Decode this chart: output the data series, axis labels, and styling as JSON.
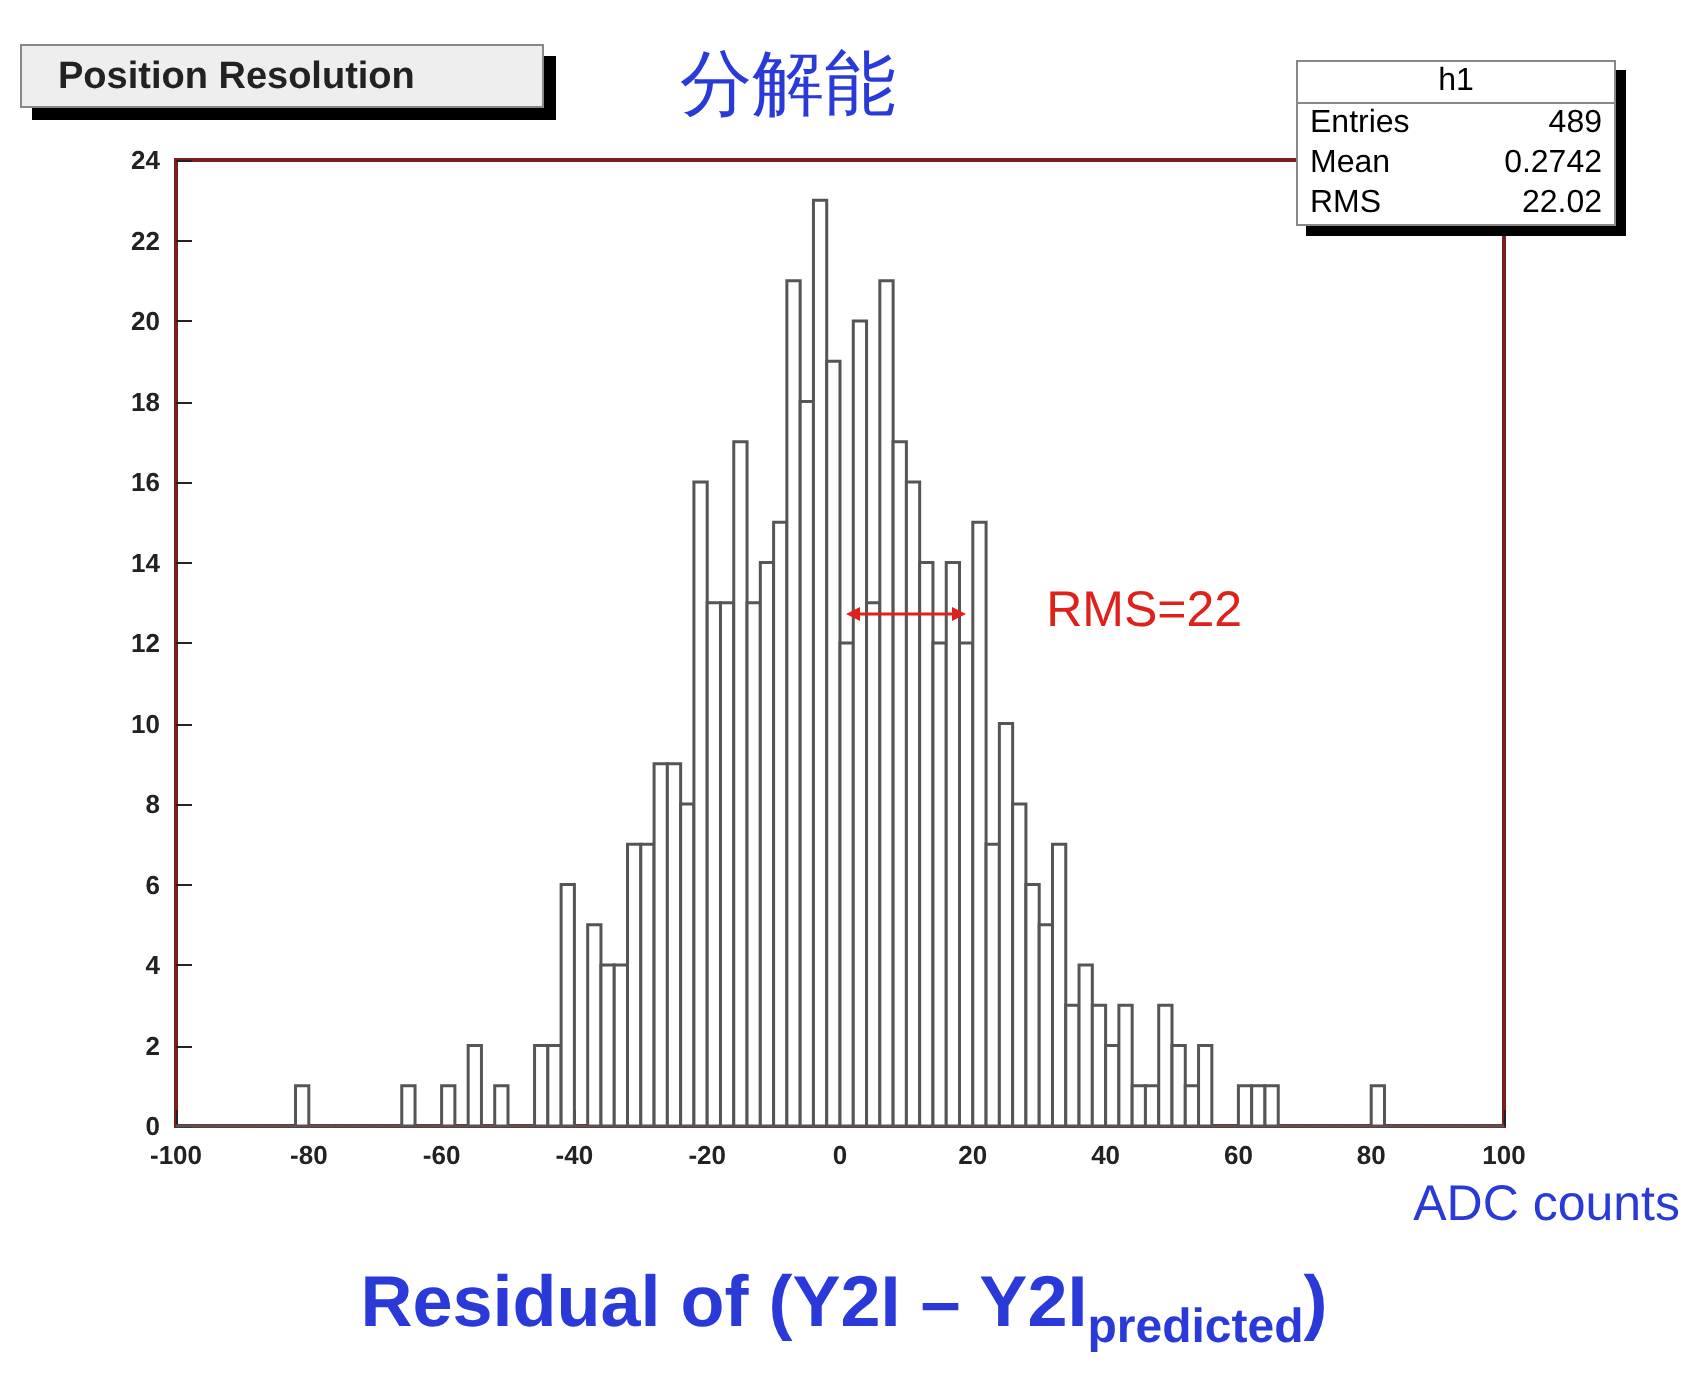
{
  "chart_data": {
    "type": "histogram",
    "title": "分解能",
    "subtitle": "Position Resolution",
    "xlabel": "ADC counts",
    "bins": [
      -100,
      -98,
      -96,
      -94,
      -92,
      -90,
      -88,
      -86,
      -84,
      -82,
      -80,
      -78,
      -76,
      -74,
      -72,
      -70,
      -68,
      -66,
      -64,
      -62,
      -60,
      -58,
      -56,
      -54,
      -52,
      -50,
      -48,
      -46,
      -44,
      -42,
      -40,
      -38,
      -36,
      -34,
      -32,
      -30,
      -28,
      -26,
      -24,
      -22,
      -20,
      -18,
      -16,
      -14,
      -12,
      -10,
      -8,
      -6,
      -4,
      -2,
      0,
      2,
      4,
      6,
      8,
      10,
      12,
      14,
      16,
      18,
      20,
      22,
      24,
      26,
      28,
      30,
      32,
      34,
      36,
      38,
      40,
      42,
      44,
      46,
      48,
      50,
      52,
      54,
      56,
      58,
      60,
      62,
      64,
      66,
      68,
      70,
      72,
      74,
      76,
      78,
      80,
      82,
      84,
      86,
      88,
      90,
      92,
      94,
      96,
      98,
      100
    ],
    "values": [
      0,
      0,
      0,
      0,
      0,
      0,
      0,
      0,
      0,
      1,
      0,
      0,
      0,
      0,
      0,
      0,
      0,
      1,
      0,
      0,
      1,
      0,
      2,
      0,
      1,
      0,
      0,
      2,
      2,
      6,
      0,
      5,
      4,
      4,
      7,
      7,
      9,
      9,
      8,
      16,
      13,
      13,
      17,
      13,
      14,
      15,
      21,
      18,
      23,
      19,
      12,
      20,
      13,
      21,
      17,
      16,
      14,
      12,
      14,
      12,
      15,
      7,
      10,
      8,
      6,
      5,
      7,
      3,
      4,
      3,
      2,
      3,
      1,
      1,
      3,
      2,
      1,
      2,
      0,
      0,
      1,
      1,
      1,
      0,
      0,
      0,
      0,
      0,
      0,
      0,
      1,
      0,
      0,
      0,
      0,
      0,
      0,
      0,
      0,
      0
    ],
    "color": "#555555",
    "xlim": [
      -100,
      100
    ],
    "xticks": [
      -100,
      -80,
      -60,
      -40,
      -20,
      0,
      20,
      40,
      60,
      80,
      100
    ],
    "ylim": [
      0,
      24
    ],
    "yticks": [
      0,
      2,
      4,
      6,
      8,
      10,
      12,
      14,
      16,
      18,
      20,
      22,
      24
    ],
    "annotations": [
      "h1",
      "Entries",
      "489",
      "Mean",
      "0.2742",
      "RMS",
      "22.02",
      {
        "text": "RMS=22",
        "x": 19,
        "y": 12.7
      },
      "Residual of (Y2I – Y2I$_{predicted}$)"
    ]
  }
}
